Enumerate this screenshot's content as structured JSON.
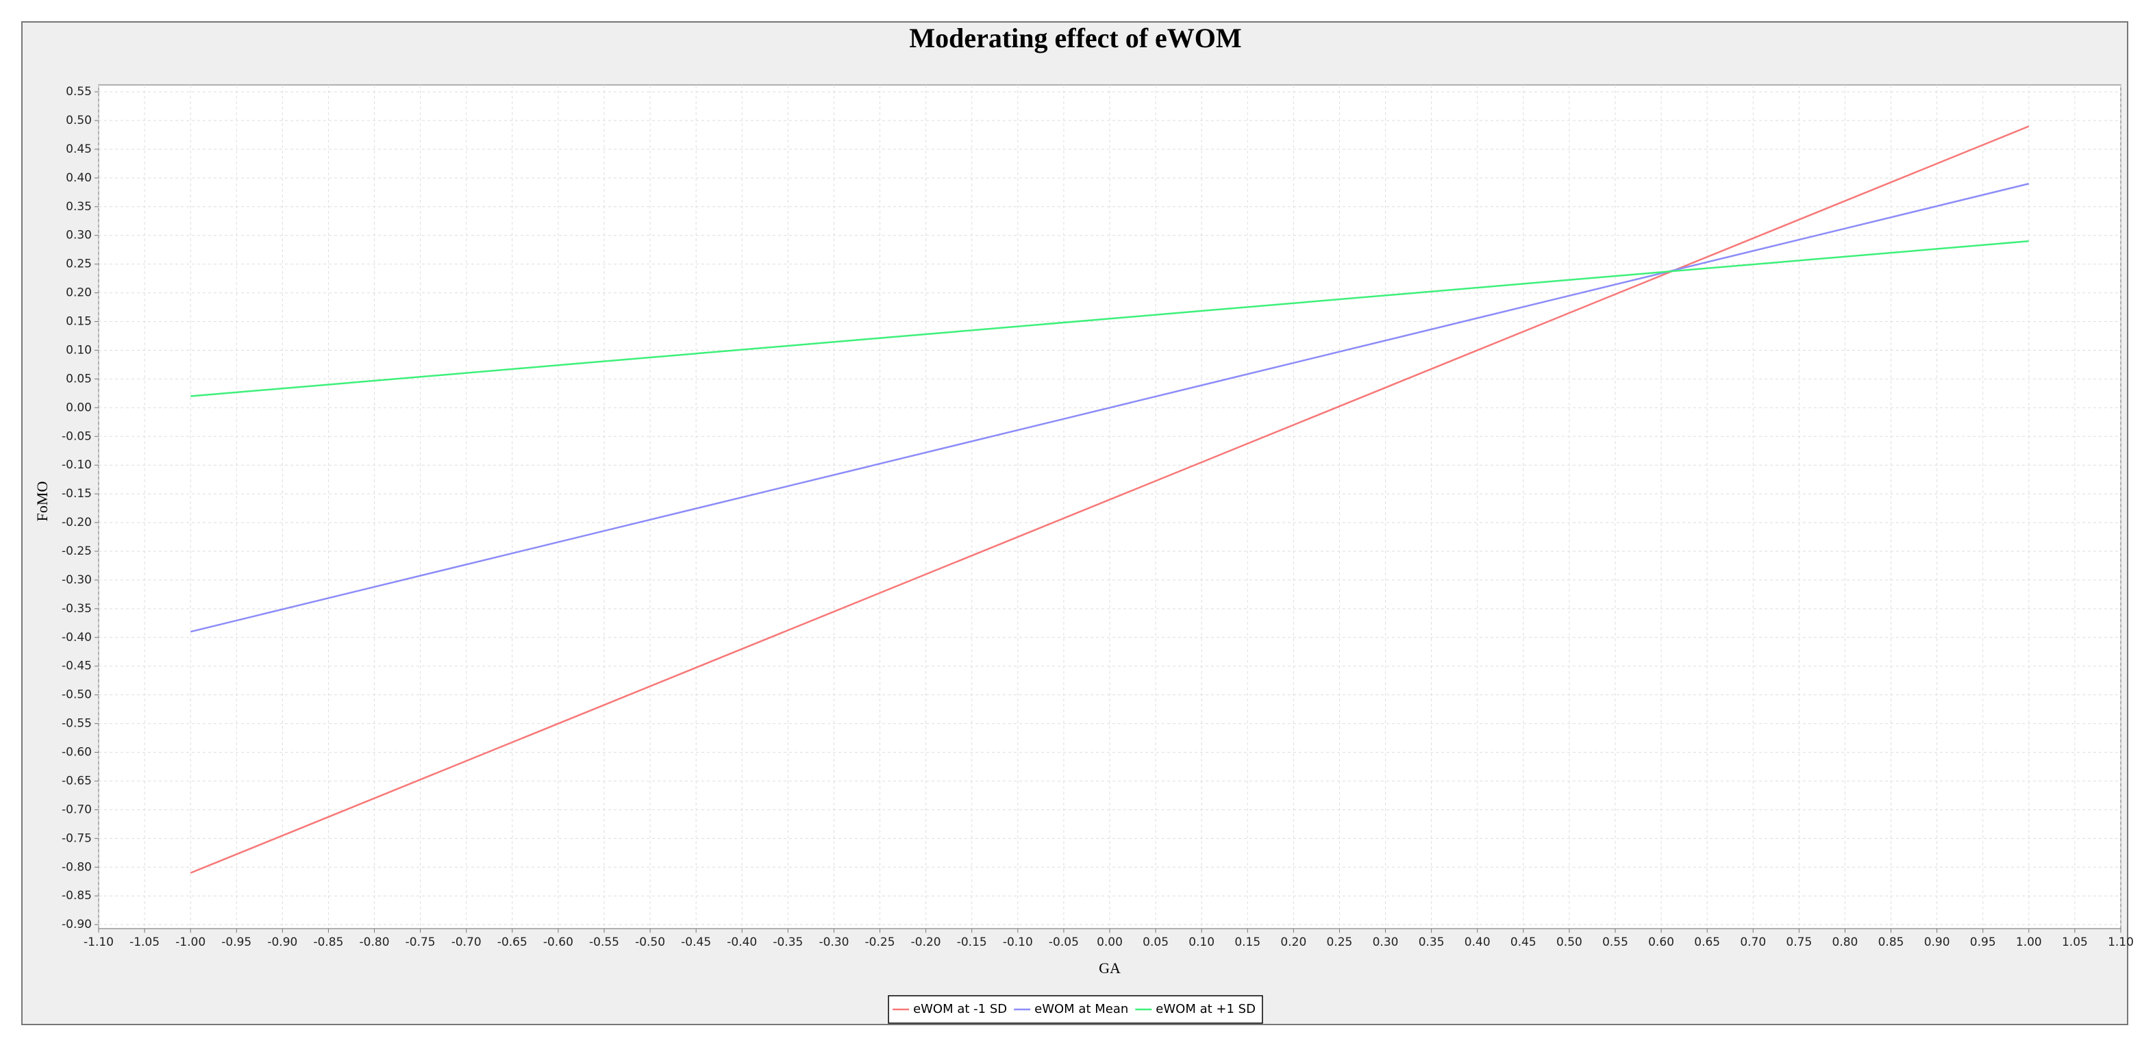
{
  "chart_data": {
    "type": "line",
    "title": "Moderating effect of eWOM",
    "x_label": "GA",
    "y_label": "FoMO",
    "x": [
      -1,
      1
    ],
    "series": [
      {
        "name": "eWOM at -1 SD",
        "color": "#f87878",
        "values": [
          -0.81,
          0.49
        ]
      },
      {
        "name": "eWOM at Mean",
        "color": "#8c8cf8",
        "values": [
          -0.39,
          0.39
        ]
      },
      {
        "name": "eWOM at +1 SD",
        "color": "#3ef07a",
        "values": [
          0.02,
          0.29
        ]
      }
    ],
    "xlim": [
      -1.1,
      1.1
    ],
    "ylim": [
      -0.907,
      0.562
    ],
    "xticks": [
      {
        "value": -1.1,
        "label": "-1.10"
      },
      {
        "value": -1.05,
        "label": "-1.05"
      },
      {
        "value": -1.0,
        "label": "-1.00"
      },
      {
        "value": -0.95,
        "label": "-0.95"
      },
      {
        "value": -0.9,
        "label": "-0.90"
      },
      {
        "value": -0.85,
        "label": "-0.85"
      },
      {
        "value": -0.8,
        "label": "-0.80"
      },
      {
        "value": -0.75,
        "label": "-0.75"
      },
      {
        "value": -0.7,
        "label": "-0.70"
      },
      {
        "value": -0.65,
        "label": "-0.65"
      },
      {
        "value": -0.6,
        "label": "-0.60"
      },
      {
        "value": -0.55,
        "label": "-0.55"
      },
      {
        "value": -0.5,
        "label": "-0.50"
      },
      {
        "value": -0.45,
        "label": "-0.45"
      },
      {
        "value": -0.4,
        "label": "-0.40"
      },
      {
        "value": -0.35,
        "label": "-0.35"
      },
      {
        "value": -0.3,
        "label": "-0.30"
      },
      {
        "value": -0.25,
        "label": "-0.25"
      },
      {
        "value": -0.2,
        "label": "-0.20"
      },
      {
        "value": -0.15,
        "label": "-0.15"
      },
      {
        "value": -0.1,
        "label": "-0.10"
      },
      {
        "value": -0.05,
        "label": "-0.05"
      },
      {
        "value": 0,
        "label": "0.00"
      },
      {
        "value": 0.05,
        "label": "0.05"
      },
      {
        "value": 0.1,
        "label": "0.10"
      },
      {
        "value": 0.15,
        "label": "0.15"
      },
      {
        "value": 0.2,
        "label": "0.20"
      },
      {
        "value": 0.25,
        "label": "0.25"
      },
      {
        "value": 0.3,
        "label": "0.30"
      },
      {
        "value": 0.35,
        "label": "0.35"
      },
      {
        "value": 0.4,
        "label": "0.40"
      },
      {
        "value": 0.45,
        "label": "0.45"
      },
      {
        "value": 0.5,
        "label": "0.50"
      },
      {
        "value": 0.55,
        "label": "0.55"
      },
      {
        "value": 0.6,
        "label": "0.60"
      },
      {
        "value": 0.65,
        "label": "0.65"
      },
      {
        "value": 0.7,
        "label": "0.70"
      },
      {
        "value": 0.75,
        "label": "0.75"
      },
      {
        "value": 0.8,
        "label": "0.80"
      },
      {
        "value": 0.85,
        "label": "0.85"
      },
      {
        "value": 0.9,
        "label": "0.90"
      },
      {
        "value": 0.95,
        "label": "0.95"
      },
      {
        "value": 1.0,
        "label": "1.00"
      },
      {
        "value": 1.05,
        "label": "1.05"
      },
      {
        "value": 1.1,
        "label": "1.10"
      }
    ],
    "yticks": [
      {
        "value": 0.55,
        "label": "0.55"
      },
      {
        "value": 0.5,
        "label": "0.50"
      },
      {
        "value": 0.45,
        "label": "0.45"
      },
      {
        "value": 0.4,
        "label": "0.40"
      },
      {
        "value": 0.35,
        "label": "0.35"
      },
      {
        "value": 0.3,
        "label": "0.30"
      },
      {
        "value": 0.25,
        "label": "0.25"
      },
      {
        "value": 0.2,
        "label": "0.20"
      },
      {
        "value": 0.15,
        "label": "0.15"
      },
      {
        "value": 0.1,
        "label": "0.10"
      },
      {
        "value": 0.05,
        "label": "0.05"
      },
      {
        "value": 0,
        "label": "0.00"
      },
      {
        "value": -0.05,
        "label": "-0.05"
      },
      {
        "value": -0.1,
        "label": "-0.10"
      },
      {
        "value": -0.15,
        "label": "-0.15"
      },
      {
        "value": -0.2,
        "label": "-0.20"
      },
      {
        "value": -0.25,
        "label": "-0.25"
      },
      {
        "value": -0.3,
        "label": "-0.30"
      },
      {
        "value": -0.35,
        "label": "-0.35"
      },
      {
        "value": -0.4,
        "label": "-0.40"
      },
      {
        "value": -0.45,
        "label": "-0.45"
      },
      {
        "value": -0.5,
        "label": "-0.50"
      },
      {
        "value": -0.55,
        "label": "-0.55"
      },
      {
        "value": -0.6,
        "label": "-0.60"
      },
      {
        "value": -0.65,
        "label": "-0.65"
      },
      {
        "value": -0.7,
        "label": "-0.70"
      },
      {
        "value": -0.75,
        "label": "-0.75"
      },
      {
        "value": -0.8,
        "label": "-0.80"
      },
      {
        "value": -0.85,
        "label": "-0.85"
      },
      {
        "value": -0.9,
        "label": "-0.90"
      }
    ],
    "grid": true,
    "legend": "bottom"
  }
}
